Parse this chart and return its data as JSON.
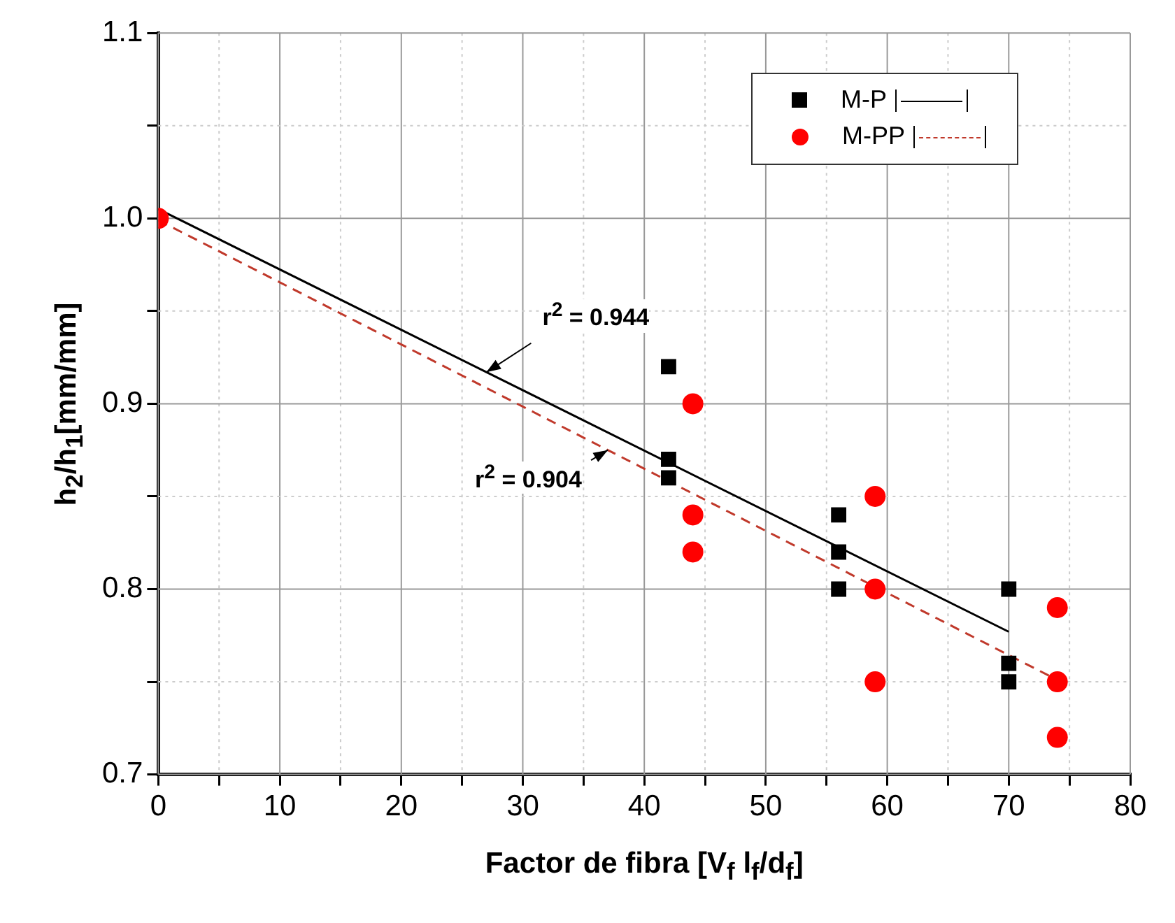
{
  "chart_data": {
    "type": "scatter",
    "xlabel": "Factor de fibra [V$_{f}$ l$_{f}$/d$_{f}$]",
    "ylabel": "h$_{2}$/h$_{1}$[mm/mm]",
    "xlim": [
      0,
      80
    ],
    "ylim": [
      0.7,
      1.1
    ],
    "xticks": [
      0,
      {
        "value": 5,
        "label": null
      },
      10,
      {
        "value": 15,
        "label": null
      },
      20,
      {
        "value": 25,
        "label": null
      },
      30,
      {
        "value": 35,
        "label": null
      },
      40,
      {
        "value": 45,
        "label": null
      },
      50,
      {
        "value": 55,
        "label": null
      },
      60,
      {
        "value": 65,
        "label": null
      },
      70,
      {
        "value": 75,
        "label": null
      },
      80
    ],
    "yticks": [
      0.7,
      {
        "value": 0.75,
        "label": null
      },
      0.8,
      {
        "value": 0.85,
        "label": null
      },
      0.9,
      {
        "value": 0.95,
        "label": null
      },
      {
        "value": 1,
        "label": "1.0"
      },
      {
        "value": 1.05,
        "label": null
      },
      1.1
    ],
    "grid": true,
    "legend": "top right",
    "series": [
      {
        "name": "M-P",
        "marker": "square",
        "color": "#000000",
        "x": [
          42,
          42,
          42,
          56,
          56,
          56,
          70,
          70,
          70
        ],
        "values": [
          0.92,
          0.87,
          0.86,
          0.84,
          0.82,
          0.8,
          0.8,
          0.76,
          0.75
        ]
      },
      {
        "type": "line",
        "marker": "none",
        "line_style": "solid",
        "color": "#000000",
        "x": [
          0,
          70
        ],
        "values": [
          1.005,
          0.777
        ]
      },
      {
        "name": "M-PP",
        "marker": "circle",
        "color": "#ff0000",
        "x": [
          0,
          44,
          44,
          44,
          59,
          59,
          59,
          74,
          74,
          74
        ],
        "values": [
          1.0,
          0.9,
          0.84,
          0.82,
          0.85,
          0.8,
          0.75,
          0.79,
          0.75,
          0.72
        ]
      },
      {
        "type": "line",
        "marker": "none",
        "line_style": "dashed",
        "color": "#c0392b",
        "x": [
          0,
          74
        ],
        "values": [
          0.999,
          0.751
        ]
      }
    ],
    "annotations": [
      {
        "text": "r$^{2}$ = 0.944",
        "x": 27,
        "y": 0.917
      },
      {
        "text": "r$^{2}$ = 0.904",
        "x": 37,
        "y": 0.875
      }
    ]
  }
}
